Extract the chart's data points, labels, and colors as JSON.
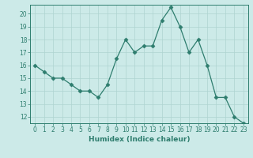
{
  "x": [
    0,
    1,
    2,
    3,
    4,
    5,
    6,
    7,
    8,
    9,
    10,
    11,
    12,
    13,
    14,
    15,
    16,
    17,
    18,
    19,
    20,
    21,
    22,
    23
  ],
  "y": [
    16.0,
    15.5,
    15.0,
    15.0,
    14.5,
    14.0,
    14.0,
    13.5,
    14.5,
    16.5,
    18.0,
    17.0,
    17.5,
    17.5,
    19.5,
    20.5,
    19.0,
    17.0,
    18.0,
    16.0,
    13.5,
    13.5,
    12.0,
    11.5
  ],
  "line_color": "#2e7d6e",
  "marker": "D",
  "marker_size": 2.5,
  "bg_color": "#cceae8",
  "grid_color": "#aed4d1",
  "xlabel": "Humidex (Indice chaleur)",
  "xlim": [
    -0.5,
    23.5
  ],
  "ylim": [
    11.5,
    20.7
  ],
  "yticks": [
    12,
    13,
    14,
    15,
    16,
    17,
    18,
    19,
    20
  ],
  "xticks": [
    0,
    1,
    2,
    3,
    4,
    5,
    6,
    7,
    8,
    9,
    10,
    11,
    12,
    13,
    14,
    15,
    16,
    17,
    18,
    19,
    20,
    21,
    22,
    23
  ],
  "xlabel_fontsize": 6.5,
  "tick_fontsize": 5.5
}
